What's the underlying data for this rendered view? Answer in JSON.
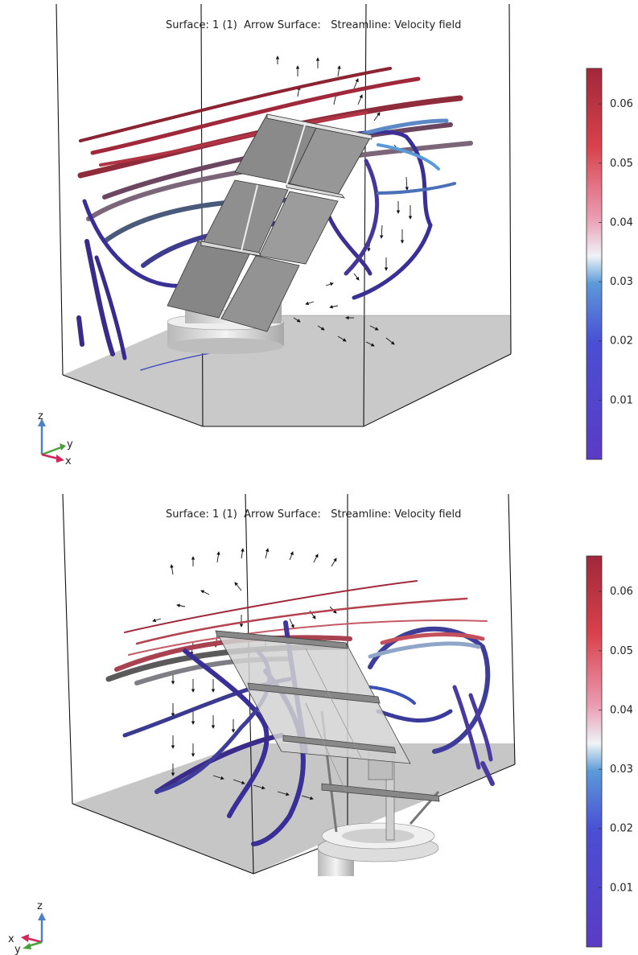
{
  "panels": [
    {
      "title": "Surface: 1 (1)  Arrow Surface:   Streamline: Velocity field",
      "triad": {
        "z": "z",
        "y": "y",
        "x": "x"
      }
    },
    {
      "title": "Surface: 1 (1)  Arrow Surface:   Streamline: Velocity field",
      "triad": {
        "z": "z",
        "y": "y",
        "x": "x"
      }
    }
  ],
  "chart_data": [
    {
      "type": "3d-streamline",
      "title": "Surface: 1 (1)  Arrow Surface:   Streamline: Velocity field",
      "colorbar": {
        "min": 0.0,
        "max": 0.066,
        "ticks": [
          0.01,
          0.02,
          0.03,
          0.04,
          0.05,
          0.06
        ],
        "tick_labels": [
          "0.01",
          "0.02",
          "0.03",
          "0.04",
          "0.05",
          "0.06"
        ],
        "colormap": [
          "#5b3bc4",
          "#4a4fd4",
          "#5b8fd8",
          "#eef3f6",
          "#e98aa5",
          "#d8424c",
          "#a0283b"
        ]
      }
    },
    {
      "type": "3d-streamline",
      "title": "Surface: 1 (1)  Arrow Surface:   Streamline: Velocity field",
      "colorbar": {
        "min": 0.0,
        "max": 0.066,
        "ticks": [
          0.01,
          0.02,
          0.03,
          0.04,
          0.05,
          0.06
        ],
        "tick_labels": [
          "0.01",
          "0.02",
          "0.03",
          "0.04",
          "0.05",
          "0.06"
        ],
        "colormap": [
          "#5b3bc4",
          "#4a4fd4",
          "#5b8fd8",
          "#eef3f6",
          "#e98aa5",
          "#d8424c",
          "#a0283b"
        ]
      }
    }
  ]
}
